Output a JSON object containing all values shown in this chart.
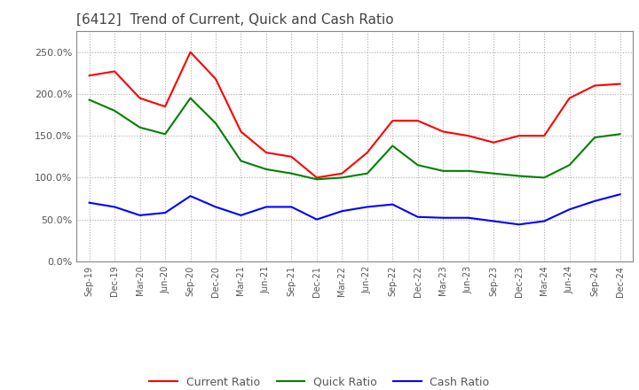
{
  "title": "[6412]  Trend of Current, Quick and Cash Ratio",
  "x_labels": [
    "Sep-19",
    "Dec-19",
    "Mar-20",
    "Jun-20",
    "Sep-20",
    "Dec-20",
    "Mar-21",
    "Jun-21",
    "Sep-21",
    "Dec-21",
    "Mar-22",
    "Jun-22",
    "Sep-22",
    "Dec-22",
    "Mar-23",
    "Jun-23",
    "Sep-23",
    "Dec-23",
    "Mar-24",
    "Jun-24",
    "Sep-24",
    "Dec-24"
  ],
  "current_ratio": [
    2.22,
    2.27,
    1.95,
    1.85,
    2.5,
    2.18,
    1.55,
    1.3,
    1.25,
    1.0,
    1.05,
    1.3,
    1.68,
    1.68,
    1.55,
    1.5,
    1.42,
    1.5,
    1.5,
    1.95,
    2.1,
    2.12
  ],
  "quick_ratio": [
    1.93,
    1.8,
    1.6,
    1.52,
    1.95,
    1.65,
    1.2,
    1.1,
    1.05,
    0.98,
    1.0,
    1.05,
    1.38,
    1.15,
    1.08,
    1.08,
    1.05,
    1.02,
    1.0,
    1.15,
    1.48,
    1.52
  ],
  "cash_ratio": [
    0.7,
    0.65,
    0.55,
    0.58,
    0.78,
    0.65,
    0.55,
    0.65,
    0.65,
    0.5,
    0.6,
    0.65,
    0.68,
    0.53,
    0.52,
    0.52,
    0.48,
    0.44,
    0.48,
    0.62,
    0.72,
    0.8
  ],
  "current_color": "#ff0000",
  "quick_color": "#008000",
  "cash_color": "#0000ff",
  "ylim": [
    0.0,
    2.75
  ],
  "yticks": [
    0.0,
    0.5,
    1.0,
    1.5,
    2.0,
    2.5
  ],
  "grid_color": "#aaaaaa",
  "title_fontsize": 11,
  "legend_fontsize": 9,
  "xtick_fontsize": 7,
  "ytick_fontsize": 8
}
